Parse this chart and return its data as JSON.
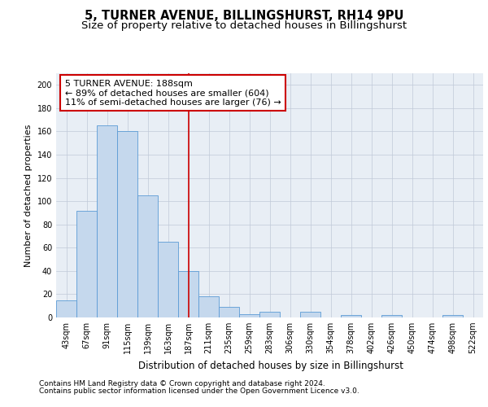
{
  "title1": "5, TURNER AVENUE, BILLINGSHURST, RH14 9PU",
  "title2": "Size of property relative to detached houses in Billingshurst",
  "xlabel": "Distribution of detached houses by size in Billingshurst",
  "ylabel": "Number of detached properties",
  "categories": [
    "43sqm",
    "67sqm",
    "91sqm",
    "115sqm",
    "139sqm",
    "163sqm",
    "187sqm",
    "211sqm",
    "235sqm",
    "259sqm",
    "283sqm",
    "306sqm",
    "330sqm",
    "354sqm",
    "378sqm",
    "402sqm",
    "426sqm",
    "450sqm",
    "474sqm",
    "498sqm",
    "522sqm"
  ],
  "values": [
    15,
    92,
    165,
    160,
    105,
    65,
    40,
    18,
    9,
    3,
    5,
    0,
    5,
    0,
    2,
    0,
    2,
    0,
    0,
    2,
    0
  ],
  "bar_color": "#c5d8ed",
  "bar_edge_color": "#5b9bd5",
  "highlight_bar_index": 6,
  "highlight_line_color": "#cc0000",
  "annotation_box_color": "#cc0000",
  "annotation_line1": "5 TURNER AVENUE: 188sqm",
  "annotation_line2": "← 89% of detached houses are smaller (604)",
  "annotation_line3": "11% of semi-detached houses are larger (76) →",
  "annotation_fontsize": 8.0,
  "ylim": [
    0,
    210
  ],
  "yticks": [
    0,
    20,
    40,
    60,
    80,
    100,
    120,
    140,
    160,
    180,
    200
  ],
  "grid_color": "#c0c9d8",
  "background_color": "#e8eef5",
  "footer1": "Contains HM Land Registry data © Crown copyright and database right 2024.",
  "footer2": "Contains public sector information licensed under the Open Government Licence v3.0.",
  "title1_fontsize": 10.5,
  "title2_fontsize": 9.5,
  "xlabel_fontsize": 8.5,
  "ylabel_fontsize": 8.0,
  "tick_fontsize": 7.0,
  "footer_fontsize": 6.5
}
